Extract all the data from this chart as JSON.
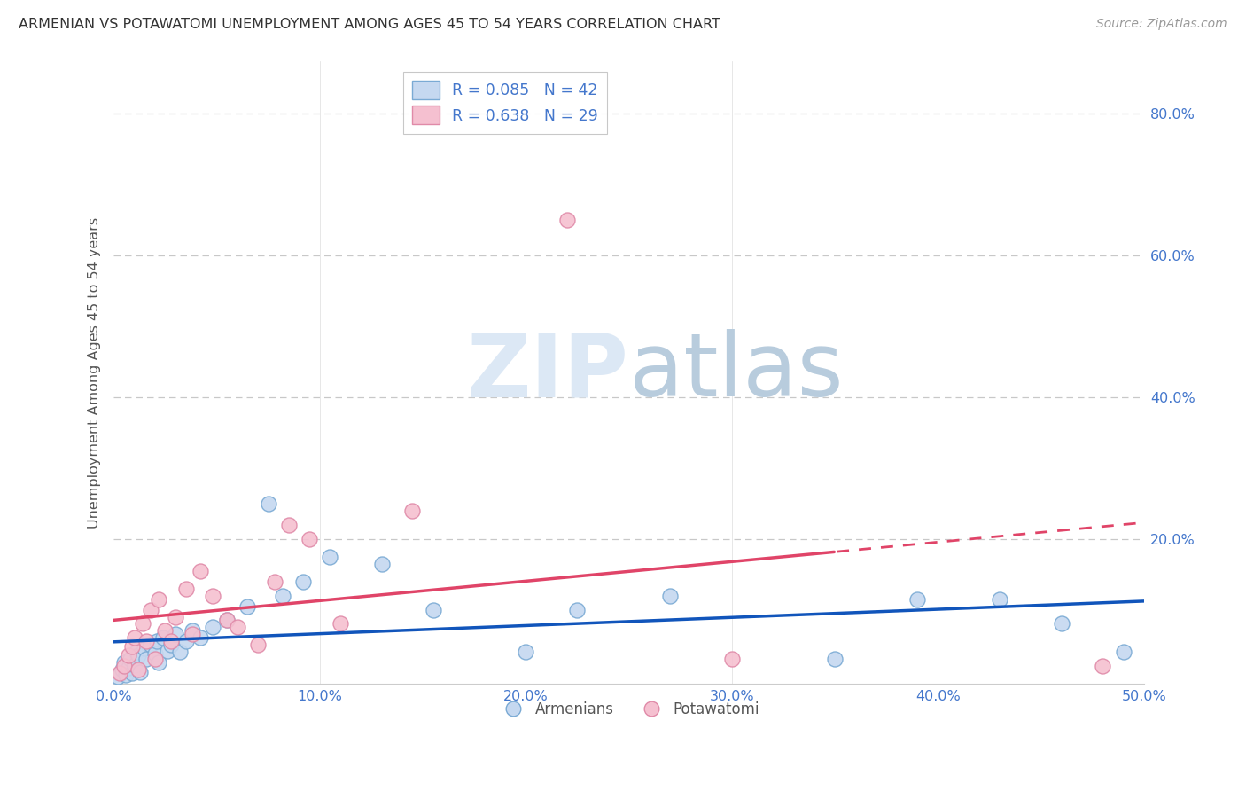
{
  "title": "ARMENIAN VS POTAWATOMI UNEMPLOYMENT AMONG AGES 45 TO 54 YEARS CORRELATION CHART",
  "source": "Source: ZipAtlas.com",
  "ylabel": "Unemployment Among Ages 45 to 54 years",
  "xlim": [
    0.0,
    0.5
  ],
  "ylim": [
    -0.005,
    0.875
  ],
  "xtick_labels": [
    "0.0%",
    "10.0%",
    "20.0%",
    "30.0%",
    "40.0%",
    "50.0%"
  ],
  "xtick_vals": [
    0.0,
    0.1,
    0.2,
    0.3,
    0.4,
    0.5
  ],
  "ytick_labels": [
    "20.0%",
    "40.0%",
    "60.0%",
    "80.0%"
  ],
  "ytick_vals": [
    0.2,
    0.4,
    0.6,
    0.8
  ],
  "grid_color": "#c8c8c8",
  "background_color": "#ffffff",
  "armenian_color": "#c5d8f0",
  "armenian_edge_color": "#7aaad4",
  "potawatomi_color": "#f5c0d0",
  "potawatomi_edge_color": "#e08aa8",
  "armenian_line_color": "#1155bb",
  "potawatomi_line_color": "#e04468",
  "armenian_x": [
    0.002,
    0.004,
    0.005,
    0.006,
    0.007,
    0.008,
    0.009,
    0.01,
    0.011,
    0.012,
    0.013,
    0.015,
    0.016,
    0.018,
    0.02,
    0.021,
    0.022,
    0.024,
    0.026,
    0.028,
    0.03,
    0.032,
    0.035,
    0.038,
    0.042,
    0.048,
    0.055,
    0.065,
    0.075,
    0.082,
    0.092,
    0.105,
    0.13,
    0.155,
    0.2,
    0.225,
    0.27,
    0.35,
    0.39,
    0.43,
    0.46,
    0.49
  ],
  "armenian_y": [
    0.005,
    0.015,
    0.025,
    0.008,
    0.018,
    0.03,
    0.01,
    0.022,
    0.04,
    0.035,
    0.012,
    0.045,
    0.03,
    0.05,
    0.038,
    0.055,
    0.025,
    0.06,
    0.042,
    0.05,
    0.065,
    0.04,
    0.055,
    0.07,
    0.06,
    0.075,
    0.085,
    0.105,
    0.25,
    0.12,
    0.14,
    0.175,
    0.165,
    0.1,
    0.04,
    0.1,
    0.12,
    0.03,
    0.115,
    0.115,
    0.08,
    0.04
  ],
  "potawatomi_x": [
    0.003,
    0.005,
    0.007,
    0.009,
    0.01,
    0.012,
    0.014,
    0.016,
    0.018,
    0.02,
    0.022,
    0.025,
    0.028,
    0.03,
    0.035,
    0.038,
    0.042,
    0.048,
    0.055,
    0.06,
    0.07,
    0.078,
    0.085,
    0.095,
    0.11,
    0.145,
    0.22,
    0.3,
    0.48
  ],
  "potawatomi_y": [
    0.01,
    0.02,
    0.035,
    0.048,
    0.06,
    0.015,
    0.08,
    0.055,
    0.1,
    0.03,
    0.115,
    0.07,
    0.055,
    0.09,
    0.13,
    0.065,
    0.155,
    0.12,
    0.085,
    0.075,
    0.05,
    0.14,
    0.22,
    0.2,
    0.08,
    0.24,
    0.65,
    0.03,
    0.02
  ],
  "watermark_zip": "ZIP",
  "watermark_atlas": "atlas",
  "watermark_color_zip": "#dce8f5",
  "watermark_color_atlas": "#b8ccdd",
  "legend_armenian_label": "R = 0.085   N = 42",
  "legend_potawatomi_label": "R = 0.638   N = 29",
  "legend_bottom_armenian": "Armenians",
  "legend_bottom_potawatomi": "Potawatomi",
  "tick_color": "#4477cc",
  "tick_fontsize": 11.5
}
